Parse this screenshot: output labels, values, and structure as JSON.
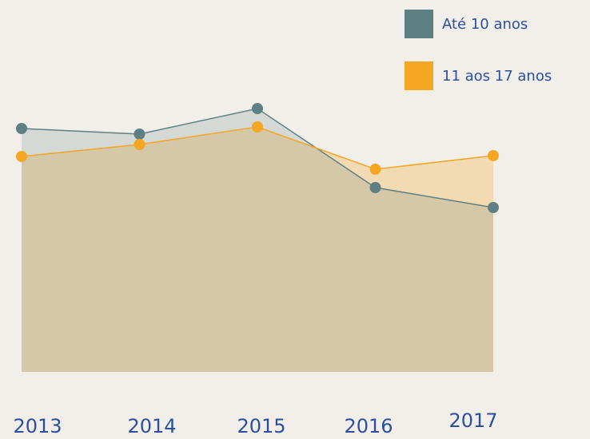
{
  "chart_data": {
    "type": "area",
    "categories": [
      "2013",
      "2014",
      "2015",
      "2016",
      "2017"
    ],
    "series": [
      {
        "name": "Até 10 anos",
        "color": "#5f8082",
        "values": [
          76.25,
          74.5,
          82.5,
          57.75,
          51.5
        ]
      },
      {
        "name": "11 aos 17 anos",
        "color": "#f5a623",
        "values": [
          67.5,
          71.25,
          76.75,
          63.5,
          67.75
        ]
      }
    ],
    "ylim": [
      0,
      100
    ],
    "legend": "top-right"
  }
}
